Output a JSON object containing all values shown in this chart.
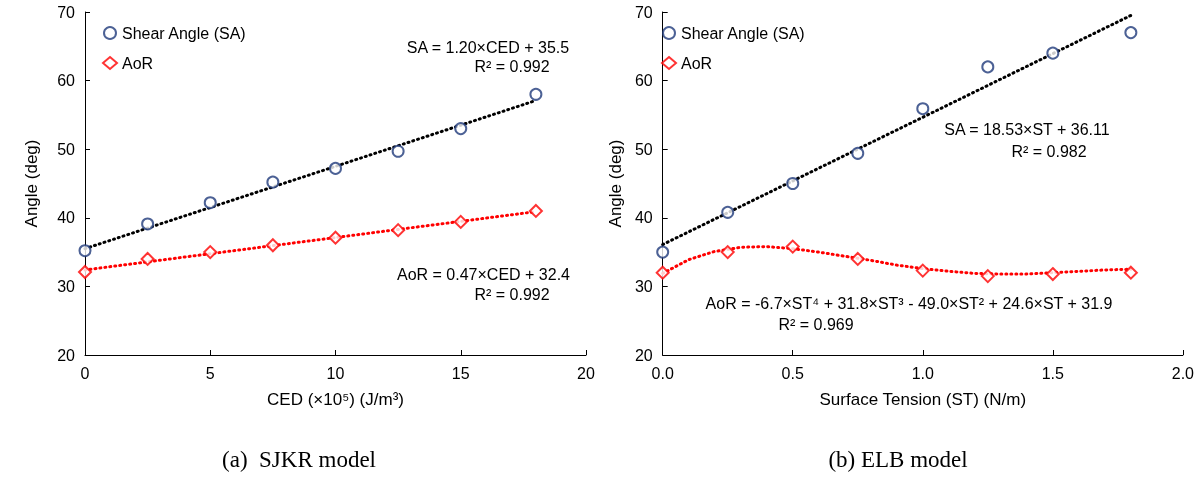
{
  "chart_data": [
    {
      "type": "scatter",
      "title": "(a)  SJKR model",
      "xlabel": "CED (×10⁵) (J/m³)",
      "ylabel": "Angle (deg)",
      "xlim": [
        0,
        20
      ],
      "xticks": [
        0,
        5,
        10,
        15,
        20
      ],
      "ylim": [
        20,
        70
      ],
      "yticks": [
        20,
        30,
        40,
        50,
        60,
        70
      ],
      "grid": false,
      "legend": "top left",
      "series": [
        {
          "type": "scatter",
          "name": "Shear Angle (SA)",
          "color": "#1f3a7a",
          "marker": "circle",
          "x": [
            0,
            2.5,
            5,
            7.5,
            10,
            12.5,
            15,
            18
          ],
          "values": [
            35.2,
            39.1,
            42.2,
            45.2,
            47.2,
            49.7,
            53.0,
            58.0
          ]
        },
        {
          "type": "scatter",
          "name": "AoR",
          "color": "#ff0000",
          "marker": "diamond",
          "x": [
            0,
            2.5,
            5,
            7.5,
            10,
            12.5,
            15,
            18
          ],
          "values": [
            32.1,
            34.0,
            35.0,
            36.0,
            37.1,
            38.2,
            39.4,
            41.0
          ]
        },
        {
          "type": "line",
          "color": "#000000",
          "line_style": "dotted",
          "marker": "none",
          "x": [
            0,
            18
          ],
          "values": [
            35.5,
            57.1
          ]
        },
        {
          "type": "line",
          "color": "#ff0000",
          "line_style": "dotted",
          "marker": "none",
          "x": [
            0,
            18
          ],
          "values": [
            32.4,
            40.9
          ]
        }
      ],
      "annotations": [
        "SA = 1.20×CED + 35.5",
        "R² = 0.992",
        "AoR = 0.47×CED + 32.4",
        "R² = 0.992"
      ]
    },
    {
      "type": "scatter",
      "title": "(b) ELB model",
      "xlabel": "Surface Tension (ST) (N/m)",
      "ylabel": "Angle (deg)",
      "xlim": [
        0,
        2
      ],
      "xticks": [
        {
          "value": 0,
          "label": "0.0"
        },
        0.5,
        {
          "value": 1,
          "label": "1.0"
        },
        1.5,
        {
          "value": 2,
          "label": "2.0"
        }
      ],
      "ylim": [
        20,
        70
      ],
      "yticks": [
        20,
        30,
        40,
        50,
        60,
        70
      ],
      "grid": false,
      "legend": "top left",
      "series": [
        {
          "type": "scatter",
          "name": "Shear Angle (SA)",
          "color": "#1f3a7a",
          "marker": "circle",
          "x": [
            0,
            0.25,
            0.5,
            0.75,
            1.0,
            1.25,
            1.5,
            1.8
          ],
          "values": [
            35.0,
            40.8,
            45.0,
            49.4,
            55.9,
            62.0,
            64.0,
            67.0
          ]
        },
        {
          "type": "scatter",
          "name": "AoR",
          "color": "#ff0000",
          "marker": "diamond",
          "x": [
            0,
            0.25,
            0.5,
            0.75,
            1.0,
            1.25,
            1.5,
            1.8
          ],
          "values": [
            32.0,
            35.0,
            35.8,
            34.0,
            32.3,
            31.5,
            31.8,
            32.0
          ]
        },
        {
          "type": "line",
          "color": "#000000",
          "line_style": "dotted",
          "marker": "none",
          "x": [
            0,
            1.8
          ],
          "values": [
            36.1,
            69.5
          ]
        },
        {
          "type": "line",
          "color": "#ff0000",
          "line_style": "dotted",
          "marker": "none",
          "x": [
            0,
            0.1,
            0.2,
            0.3,
            0.4,
            0.5,
            0.6,
            0.7,
            0.8,
            0.9,
            1.0,
            1.1,
            1.2,
            1.3,
            1.4,
            1.5,
            1.6,
            1.7,
            1.8
          ],
          "values": [
            31.9,
            33.9,
            35.1,
            35.7,
            35.8,
            35.5,
            35.0,
            34.4,
            33.8,
            33.1,
            32.6,
            32.2,
            31.9,
            31.8,
            31.8,
            32.0,
            32.2,
            32.4,
            32.5
          ]
        }
      ],
      "annotations": [
        "SA = 18.53×ST + 36.11",
        "R² = 0.982",
        "AoR = -6.7×ST⁴ + 31.8×ST³ - 49.0×ST² + 24.6×ST + 31.9",
        "R² = 0.969"
      ]
    }
  ]
}
